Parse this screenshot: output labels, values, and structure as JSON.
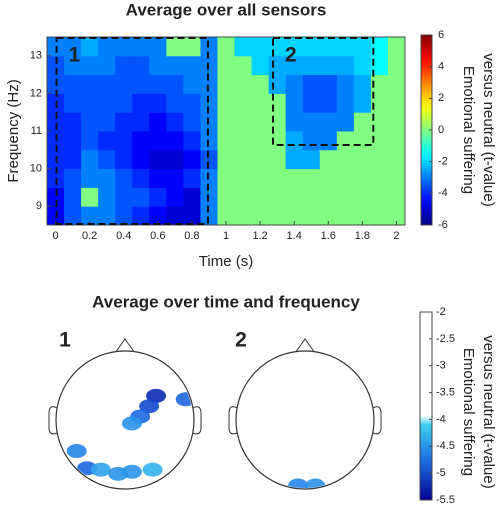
{
  "chart_data": [
    {
      "type": "heatmap",
      "title": "Average over all sensors",
      "xlabel": "Time (s)",
      "ylabel": "Frequency (Hz)",
      "x": [
        0,
        0.1,
        0.2,
        0.3,
        0.4,
        0.5,
        0.6,
        0.7,
        0.8,
        0.9,
        1.0,
        1.1,
        1.2,
        1.3,
        1.4,
        1.5,
        1.6,
        1.7,
        1.8,
        1.9,
        2.0
      ],
      "y": [
        8.75,
        9.25,
        9.75,
        10.25,
        10.75,
        11.25,
        11.75,
        12.25,
        12.75,
        13.25
      ],
      "z": [
        [
          -4.5,
          -3.5,
          -3,
          -3,
          -3.5,
          -4,
          -4.5,
          -5,
          -5,
          -3,
          0,
          0,
          0,
          0,
          0,
          0,
          0,
          0,
          0,
          0,
          0
        ],
        [
          -4.5,
          -3.5,
          0,
          -3,
          -3.5,
          -3.5,
          -4,
          -4.5,
          -5,
          -3,
          0,
          0,
          0,
          0,
          0,
          0,
          0,
          0,
          0,
          0,
          0
        ],
        [
          -4,
          -3.5,
          -3,
          -3,
          -3.5,
          -4,
          -4.5,
          -4.5,
          -4,
          -3,
          0,
          0,
          0,
          0,
          0,
          0,
          0,
          0,
          0,
          0,
          0
        ],
        [
          -4,
          -4,
          -3,
          -3.5,
          -4,
          -4.5,
          -5,
          -5,
          -4.5,
          -3.5,
          0,
          0,
          0,
          0,
          -2.5,
          -2.5,
          0,
          0,
          0,
          0,
          0
        ],
        [
          -4,
          -4,
          -3.5,
          -4,
          -4,
          -4.5,
          -4.5,
          -4.5,
          -4,
          -3,
          0,
          0,
          0,
          0,
          -2.5,
          -3,
          -3,
          0,
          0,
          0,
          0
        ],
        [
          -4,
          -4,
          -3.5,
          -3.5,
          -4,
          -4,
          -4.5,
          -4,
          -3.5,
          -3,
          0,
          0,
          0,
          0,
          -3,
          -3,
          -3,
          -3,
          0,
          0,
          0
        ],
        [
          -4,
          -3.5,
          -3.5,
          -3.5,
          -3.5,
          -4,
          -4,
          -3.5,
          -3.5,
          -3,
          0,
          0,
          0,
          0,
          -3,
          -3.5,
          -3.5,
          -3,
          -2.5,
          0,
          0
        ],
        [
          -3.5,
          -3.5,
          -3.5,
          -3.5,
          -3.5,
          -3.5,
          -3.5,
          -3.5,
          -3,
          -3,
          0,
          0,
          0,
          -2.5,
          -3,
          -3.5,
          -3.5,
          -3,
          -2.5,
          0,
          0
        ],
        [
          -3.5,
          -3,
          -3,
          -3,
          -3.5,
          -3.5,
          -3,
          -3,
          -3,
          -3,
          0,
          0,
          -2,
          -2.5,
          -2.5,
          -2.5,
          -2.5,
          -2.5,
          -2,
          -1.5,
          0
        ],
        [
          -3,
          -3,
          -2.5,
          -3,
          -3,
          -3,
          -3,
          0,
          0,
          -3,
          0,
          -2,
          -2,
          -2,
          -2,
          -2,
          -2,
          -2,
          -2,
          -1.5,
          0
        ]
      ],
      "xlim": [
        -0.05,
        2.05
      ],
      "ylim": [
        8.5,
        13.5
      ],
      "xticks": [
        0,
        0.2,
        0.4,
        0.6,
        0.8,
        1,
        1.2,
        1.4,
        1.6,
        1.8,
        2
      ],
      "yticks": [
        9,
        10,
        11,
        12,
        13
      ],
      "colormap": "jet",
      "clim": [
        -6,
        6
      ],
      "cticks": [
        -6,
        -4,
        -2,
        0,
        2,
        4,
        6
      ],
      "colorbar_label": [
        "Emotional suffering",
        "versus neutral (t-value)"
      ],
      "regions": [
        {
          "label": "1",
          "x": [
            0,
            0.9
          ],
          "y": [
            8.5,
            13.5
          ]
        },
        {
          "label": "2",
          "x": [
            1.27,
            1.87
          ],
          "y": [
            10.6,
            13.5
          ]
        }
      ]
    },
    {
      "type": "topoplot",
      "title": "Average over time and frequency",
      "clim": [
        -5.5,
        -2
      ],
      "threshold": -4,
      "cticks": [
        -2,
        -2.5,
        -3,
        -3.5,
        -4,
        -4.5,
        -5,
        -5.5
      ],
      "colorbar_label": [
        "Emotional suffering",
        "versus neutral (t-value)"
      ],
      "panels": [
        {
          "label": "1",
          "points": [
            {
              "x": 0.45,
              "y": 0.35,
              "value": -5.2
            },
            {
              "x": 0.35,
              "y": 0.2,
              "value": -5
            },
            {
              "x": 0.22,
              "y": 0.05,
              "value": -4.8
            },
            {
              "x": 0.1,
              "y": -0.05,
              "value": -4.5
            },
            {
              "x": 0.88,
              "y": 0.3,
              "value": -4.8
            },
            {
              "x": -0.7,
              "y": -0.45,
              "value": -4.6
            },
            {
              "x": -0.55,
              "y": -0.7,
              "value": -4.8
            },
            {
              "x": -0.35,
              "y": -0.72,
              "value": -4.4
            },
            {
              "x": 0.1,
              "y": -0.75,
              "value": -4.5
            },
            {
              "x": 0.4,
              "y": -0.72,
              "value": -4.3
            },
            {
              "x": -0.1,
              "y": -0.78,
              "value": -4.5
            }
          ]
        },
        {
          "label": "2",
          "points": [
            {
              "x": -0.1,
              "y": -0.95,
              "value": -4.6
            },
            {
              "x": 0.15,
              "y": -0.95,
              "value": -4.5
            }
          ]
        }
      ]
    }
  ]
}
